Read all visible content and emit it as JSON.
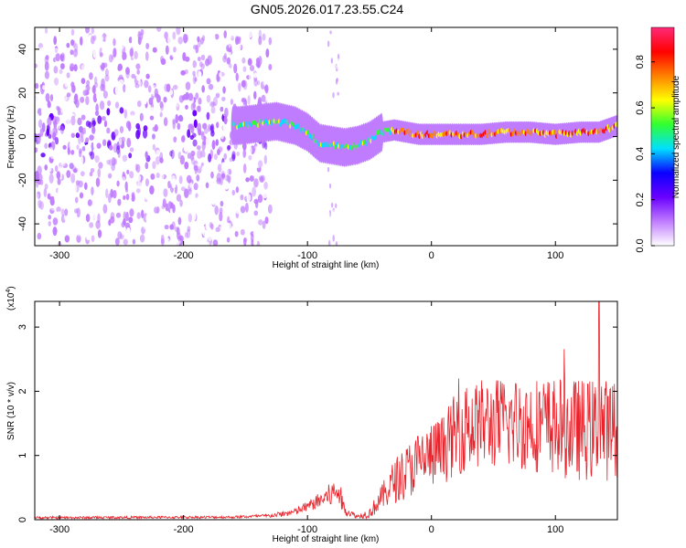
{
  "title": "GN05.2026.017.23.55.C24",
  "colors": {
    "snr_line": "#e8232b",
    "axis": "#000000"
  },
  "colormap": [
    "#ffffff",
    "#c07cff",
    "#6a00ff",
    "#0a00ff",
    "#00e0ff",
    "#30ff30",
    "#ffff00",
    "#ff8000",
    "#ff0000",
    "#ff2a7a"
  ],
  "chart_data": [
    {
      "type": "heatmap",
      "title": "GN05.2026.017.23.55.C24",
      "xlabel": "Height of straight line (km)",
      "ylabel": "Frequency (Hz)",
      "xlim": [
        -320,
        150
      ],
      "ylim": [
        -50,
        50
      ],
      "xticks": [
        "-300",
        "-200",
        "-100",
        "0",
        "100"
      ],
      "xtick_values": [
        -300,
        -200,
        -100,
        0,
        100
      ],
      "yticks": [
        "40",
        "20",
        "0",
        "-20",
        "-40"
      ],
      "ytick_values": [
        40,
        20,
        0,
        -20,
        -40
      ],
      "colorbar": {
        "label": "Normalized spectral amplitude",
        "range": [
          0,
          0.95
        ],
        "ticks": [
          "0.0",
          "0.2",
          "0.4",
          "0.6",
          "0.8"
        ],
        "tick_values": [
          0.0,
          0.2,
          0.4,
          0.6,
          0.8
        ]
      },
      "ridge": [
        {
          "x": -155,
          "f": 5
        },
        {
          "x": -140,
          "f": 6
        },
        {
          "x": -125,
          "f": 7
        },
        {
          "x": -110,
          "f": 5
        },
        {
          "x": -100,
          "f": 2
        },
        {
          "x": -90,
          "f": -3
        },
        {
          "x": -80,
          "f": -4
        },
        {
          "x": -70,
          "f": -5
        },
        {
          "x": -60,
          "f": -4
        },
        {
          "x": -50,
          "f": -2
        },
        {
          "x": -40,
          "f": 2
        },
        {
          "x": -30,
          "f": 3
        },
        {
          "x": -20,
          "f": 2
        },
        {
          "x": -10,
          "f": 1
        },
        {
          "x": 0,
          "f": 1
        },
        {
          "x": 20,
          "f": 1
        },
        {
          "x": 40,
          "f": 1
        },
        {
          "x": 60,
          "f": 2
        },
        {
          "x": 80,
          "f": 2
        },
        {
          "x": 100,
          "f": 1
        },
        {
          "x": 120,
          "f": 2
        },
        {
          "x": 135,
          "f": 2
        },
        {
          "x": 150,
          "f": 5
        }
      ]
    },
    {
      "type": "line",
      "xlabel": "Height of straight line (km)",
      "ylabel": "SNR (10 * v/v)",
      "yscale_label": "(x10",
      "yscale_exp": "4",
      "xlim": [
        -320,
        150
      ],
      "ylim": [
        0,
        3.4
      ],
      "xticks": [
        "-300",
        "-200",
        "-100",
        "0",
        "100"
      ],
      "xtick_values": [
        -300,
        -200,
        -100,
        0,
        100
      ],
      "yticks": [
        "3",
        "2",
        "1",
        "0"
      ],
      "ytick_values": [
        3,
        2,
        1,
        0
      ],
      "envelope": [
        {
          "x": -320,
          "mean": 0.03,
          "spread": 0.02
        },
        {
          "x": -160,
          "mean": 0.04,
          "spread": 0.02
        },
        {
          "x": -130,
          "mean": 0.06,
          "spread": 0.03
        },
        {
          "x": -110,
          "mean": 0.12,
          "spread": 0.06
        },
        {
          "x": -95,
          "mean": 0.25,
          "spread": 0.1
        },
        {
          "x": -80,
          "mean": 0.4,
          "spread": 0.2
        },
        {
          "x": -75,
          "mean": 0.45,
          "spread": 0.25
        },
        {
          "x": -70,
          "mean": 0.15,
          "spread": 0.08
        },
        {
          "x": -60,
          "mean": 0.05,
          "spread": 0.03
        },
        {
          "x": -50,
          "mean": 0.1,
          "spread": 0.08
        },
        {
          "x": -40,
          "mean": 0.35,
          "spread": 0.2
        },
        {
          "x": -30,
          "mean": 0.6,
          "spread": 0.35
        },
        {
          "x": -10,
          "mean": 0.9,
          "spread": 0.5
        },
        {
          "x": 10,
          "mean": 1.1,
          "spread": 0.55
        },
        {
          "x": 20,
          "mean": 1.35,
          "spread": 0.65
        },
        {
          "x": 40,
          "mean": 1.5,
          "spread": 0.7
        },
        {
          "x": 80,
          "mean": 1.5,
          "spread": 0.75
        },
        {
          "x": 120,
          "mean": 1.4,
          "spread": 0.8
        },
        {
          "x": 150,
          "mean": 1.4,
          "spread": 0.8
        }
      ],
      "peak": {
        "x": 135,
        "value": 3.4
      }
    }
  ]
}
